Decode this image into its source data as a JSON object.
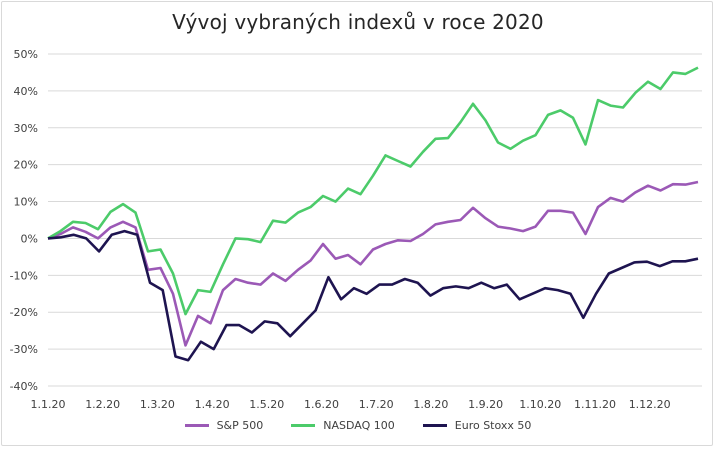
{
  "chart_data": {
    "type": "line",
    "title": "Vývoj vybraných indexů  v roce 2020",
    "xlabel": "",
    "ylabel": "",
    "ylim": [
      -40,
      50
    ],
    "yticks": [
      50,
      40,
      30,
      20,
      10,
      0,
      -10,
      -20,
      -30,
      -40
    ],
    "ytick_labels": [
      "50%",
      "40%",
      "30%",
      "20%",
      "10%",
      "0%",
      "-10%",
      "-20%",
      "-30%",
      "-40%"
    ],
    "xtick_labels": [
      "1.1.20",
      "1.2.20",
      "1.3.20",
      "1.4.20",
      "1.5.20",
      "1.6.20",
      "1.7.20",
      "1.8.20",
      "1.9.20",
      "1.10.20",
      "1.11.20",
      "1.12.20"
    ],
    "grid": true,
    "legend_position": "bottom",
    "series": [
      {
        "name": "S&P 500",
        "color": "#9b59b6",
        "values": [
          0,
          1.2,
          3,
          1.8,
          0,
          3,
          4.5,
          3,
          -8.5,
          -8,
          -15,
          -29,
          -21,
          -23,
          -14,
          -11,
          -12,
          -12.5,
          -9.5,
          -11.5,
          -8.5,
          -6,
          -1.5,
          -5.5,
          -4.5,
          -7,
          -3,
          -1.5,
          -0.5,
          -0.7,
          1.2,
          3.8,
          4.5,
          5,
          8.3,
          5.5,
          3.2,
          2.7,
          2,
          3.2,
          7.5,
          7.5,
          7,
          1.2,
          8.5,
          11,
          10,
          12.5,
          14.3,
          13,
          14.7,
          14.6,
          15.3
        ]
      },
      {
        "name": "NASDAQ 100",
        "color": "#4ccb6a",
        "values": [
          0,
          2,
          4.5,
          4.2,
          2.5,
          7.2,
          9.3,
          7,
          -3.5,
          -3,
          -9.5,
          -20.5,
          -14,
          -14.5,
          -7,
          0,
          -0.2,
          -1,
          4.8,
          4.3,
          7,
          8.5,
          11.5,
          10,
          13.5,
          12,
          17,
          22.5,
          21,
          19.5,
          23.5,
          27,
          27.2,
          31.5,
          36.5,
          32,
          26,
          24.3,
          26.5,
          28,
          33.5,
          34.7,
          32.7,
          25.5,
          37.5,
          36,
          35.5,
          39.5,
          42.5,
          40.5,
          45,
          44.6,
          46.3
        ]
      },
      {
        "name": "Euro Stoxx 50",
        "color": "#1e1450",
        "values": [
          0,
          0.3,
          1,
          0,
          -3.5,
          1,
          2,
          1,
          -12,
          -14,
          -32,
          -33,
          -28,
          -30,
          -23.5,
          -23.5,
          -25.5,
          -22.5,
          -23,
          -26.5,
          -23,
          -19.5,
          -10.5,
          -16.5,
          -13.5,
          -15,
          -12.5,
          -12.5,
          -11,
          -12,
          -15.5,
          -13.5,
          -13,
          -13.5,
          -12,
          -13.5,
          -12.5,
          -16.5,
          -15,
          -13.5,
          -14,
          -15,
          -21.5,
          -15,
          -9.5,
          -8,
          -6.5,
          -6.3,
          -7.5,
          -6.2,
          -6.2,
          -5.5
        ]
      }
    ]
  }
}
